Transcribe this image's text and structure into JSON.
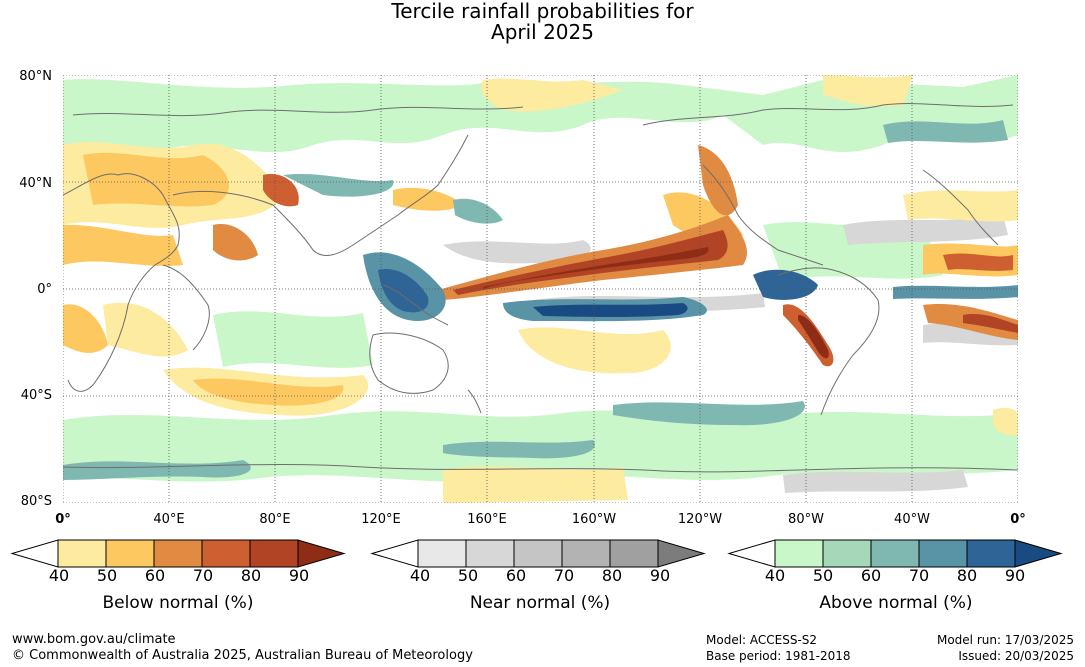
{
  "title": {
    "line1": "Tercile rainfall probabilities for",
    "line2": "April 2025"
  },
  "lat_labels": [
    "80°N",
    "40°N",
    "0°",
    "40°S",
    "80°S"
  ],
  "lon_labels": [
    "0°",
    "40°E",
    "80°E",
    "120°E",
    "160°E",
    "160°W",
    "120°W",
    "80°W",
    "40°W",
    "0°"
  ],
  "legends": [
    {
      "title": "Below normal (%)",
      "ticks": [
        "40",
        "50",
        "60",
        "70",
        "80",
        "90"
      ],
      "colors": [
        "#ffffff",
        "#fdeba0",
        "#fdc860",
        "#e08a42",
        "#cd5f30",
        "#b04424",
        "#8e2c16"
      ]
    },
    {
      "title": "Near normal (%)",
      "ticks": [
        "40",
        "50",
        "60",
        "70",
        "80",
        "90"
      ],
      "colors": [
        "#ffffff",
        "#e8e8e8",
        "#d7d7d7",
        "#c5c5c5",
        "#b3b3b3",
        "#a0a0a0",
        "#7c7c7c"
      ]
    },
    {
      "title": "Above normal (%)",
      "ticks": [
        "40",
        "50",
        "60",
        "70",
        "80",
        "90"
      ],
      "colors": [
        "#ffffff",
        "#c9f7c9",
        "#a4d8b8",
        "#7fb8b0",
        "#5993a6",
        "#2e6496",
        "#1a4a82"
      ]
    }
  ],
  "footer": {
    "url": "www.bom.gov.au/climate",
    "copyright": "© Commonwealth of Australia 2025, Australian Bureau of Meteorology",
    "model": "Model: ACCESS-S2",
    "base_period": "Base period: 1981-2018",
    "model_run": "Model run: 17/03/2025",
    "issued": "Issued: 20/03/2025"
  }
}
